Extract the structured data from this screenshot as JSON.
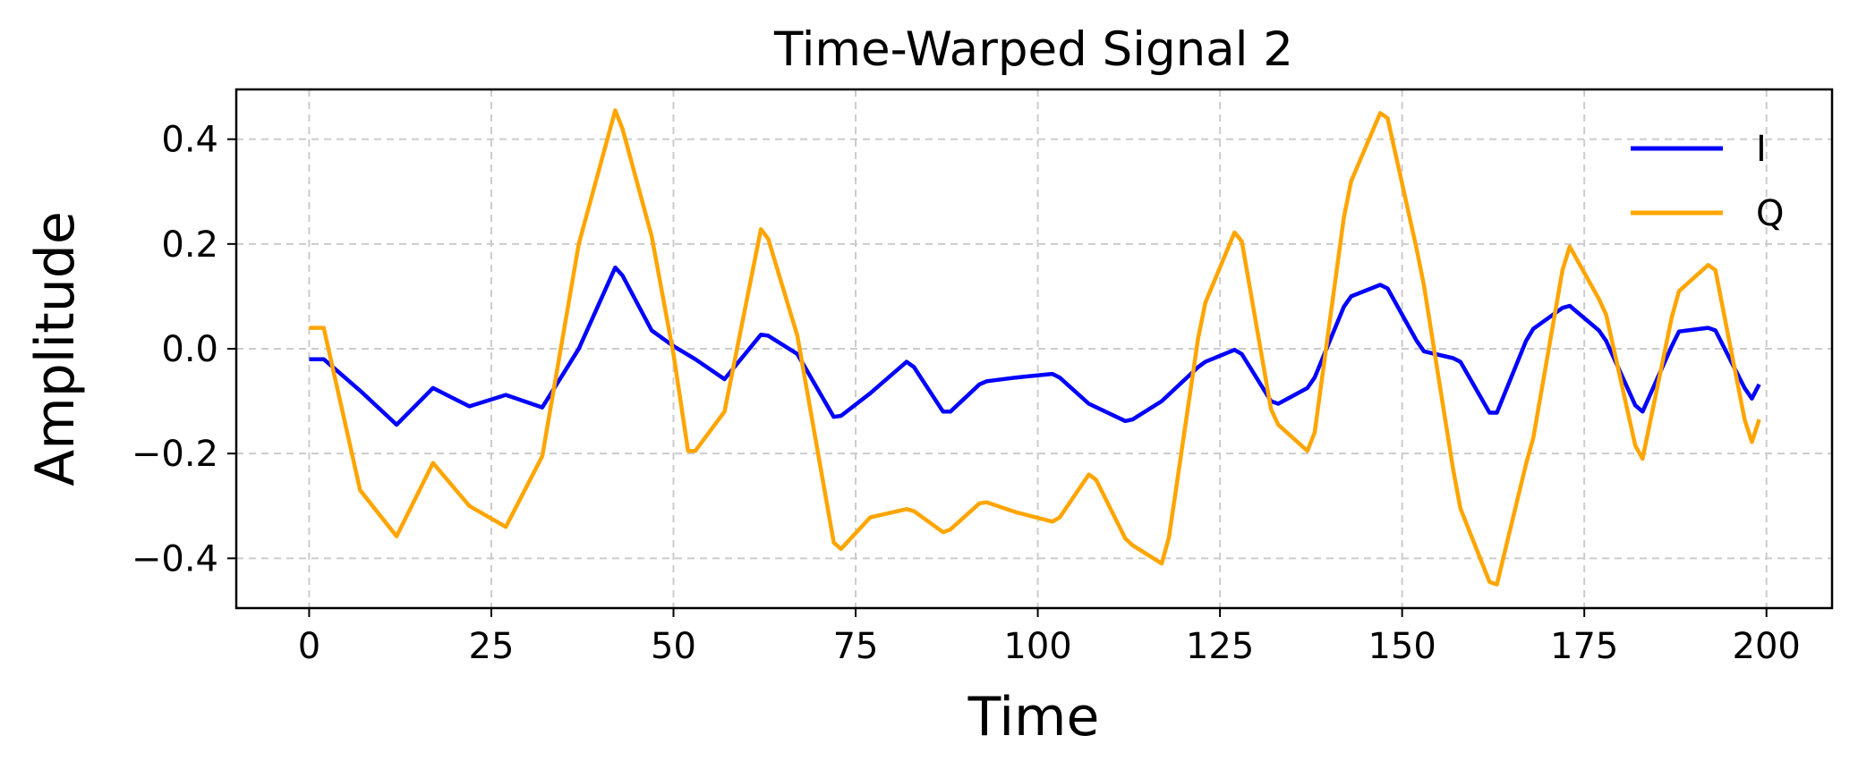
{
  "chart_data": {
    "type": "line",
    "title": "Time-Warped Signal 2",
    "xlabel": "Time",
    "ylabel": "Amplitude",
    "xlim": [
      -10,
      209
    ],
    "ylim": [
      -0.495,
      0.495
    ],
    "xticks": [
      0,
      25,
      50,
      75,
      100,
      125,
      150,
      175,
      200
    ],
    "yticks": [
      -0.4,
      -0.2,
      0.0,
      0.2,
      0.4
    ],
    "xtick_labels": [
      "0",
      "25",
      "50",
      "75",
      "100",
      "125",
      "150",
      "175",
      "200"
    ],
    "ytick_labels": [
      "−0.4",
      "−0.2",
      "0.0",
      "0.2",
      "0.4"
    ],
    "grid": true,
    "legend_position": "top-right",
    "series": [
      {
        "name": "I",
        "color": "#0000ff",
        "x": [
          0,
          2,
          7,
          12,
          17,
          22,
          27,
          32,
          37,
          42,
          43,
          47,
          50,
          53,
          57,
          62,
          63,
          67,
          72,
          73,
          77,
          82,
          83,
          87,
          88,
          92,
          93,
          97,
          102,
          103,
          107,
          112,
          113,
          117,
          122,
          123,
          127,
          128,
          132,
          133,
          137,
          138,
          142,
          143,
          147,
          148,
          152,
          153,
          157,
          158,
          162,
          163,
          167,
          168,
          172,
          173,
          177,
          178,
          182,
          183,
          187,
          188,
          192,
          193,
          197,
          198,
          199
        ],
        "y": [
          -0.02,
          -0.02,
          -0.08,
          -0.145,
          -0.075,
          -0.11,
          -0.088,
          -0.112,
          0.0,
          0.155,
          0.14,
          0.035,
          0.005,
          -0.02,
          -0.058,
          0.027,
          0.025,
          -0.01,
          -0.13,
          -0.128,
          -0.085,
          -0.025,
          -0.035,
          -0.12,
          -0.12,
          -0.068,
          -0.062,
          -0.055,
          -0.048,
          -0.055,
          -0.105,
          -0.138,
          -0.135,
          -0.1,
          -0.035,
          -0.025,
          -0.002,
          -0.01,
          -0.1,
          -0.105,
          -0.075,
          -0.055,
          0.08,
          0.1,
          0.122,
          0.115,
          0.015,
          -0.005,
          -0.018,
          -0.025,
          -0.122,
          -0.122,
          0.015,
          0.038,
          0.078,
          0.082,
          0.035,
          0.015,
          -0.108,
          -0.12,
          0.005,
          0.033,
          0.04,
          0.035,
          -0.075,
          -0.095,
          -0.068
        ]
      },
      {
        "name": "Q",
        "color": "#ffa500",
        "x": [
          0,
          2,
          7,
          12,
          17,
          22,
          27,
          32,
          37,
          42,
          43,
          47,
          50,
          52,
          53,
          57,
          62,
          63,
          67,
          72,
          73,
          77,
          82,
          83,
          87,
          88,
          92,
          93,
          97,
          102,
          103,
          107,
          108,
          112,
          113,
          117,
          118,
          122,
          123,
          127,
          128,
          132,
          133,
          137,
          138,
          142,
          143,
          147,
          148,
          152,
          153,
          157,
          158,
          162,
          163,
          167,
          168,
          172,
          173,
          177,
          178,
          182,
          183,
          187,
          188,
          192,
          193,
          197,
          198,
          199
        ],
        "y": [
          0.04,
          0.04,
          -0.27,
          -0.358,
          -0.218,
          -0.3,
          -0.34,
          -0.205,
          0.2,
          0.455,
          0.42,
          0.215,
          -0.01,
          -0.195,
          -0.195,
          -0.12,
          0.228,
          0.21,
          0.025,
          -0.37,
          -0.382,
          -0.322,
          -0.306,
          -0.31,
          -0.35,
          -0.345,
          -0.295,
          -0.293,
          -0.312,
          -0.33,
          -0.322,
          -0.24,
          -0.25,
          -0.362,
          -0.375,
          -0.41,
          -0.36,
          0.02,
          0.088,
          0.222,
          0.205,
          -0.115,
          -0.145,
          -0.195,
          -0.16,
          0.25,
          0.32,
          0.45,
          0.44,
          0.19,
          0.12,
          -0.23,
          -0.305,
          -0.445,
          -0.45,
          -0.22,
          -0.17,
          0.15,
          0.195,
          0.095,
          0.065,
          -0.185,
          -0.21,
          0.06,
          0.11,
          0.16,
          0.15,
          -0.135,
          -0.178,
          -0.135
        ]
      }
    ]
  }
}
